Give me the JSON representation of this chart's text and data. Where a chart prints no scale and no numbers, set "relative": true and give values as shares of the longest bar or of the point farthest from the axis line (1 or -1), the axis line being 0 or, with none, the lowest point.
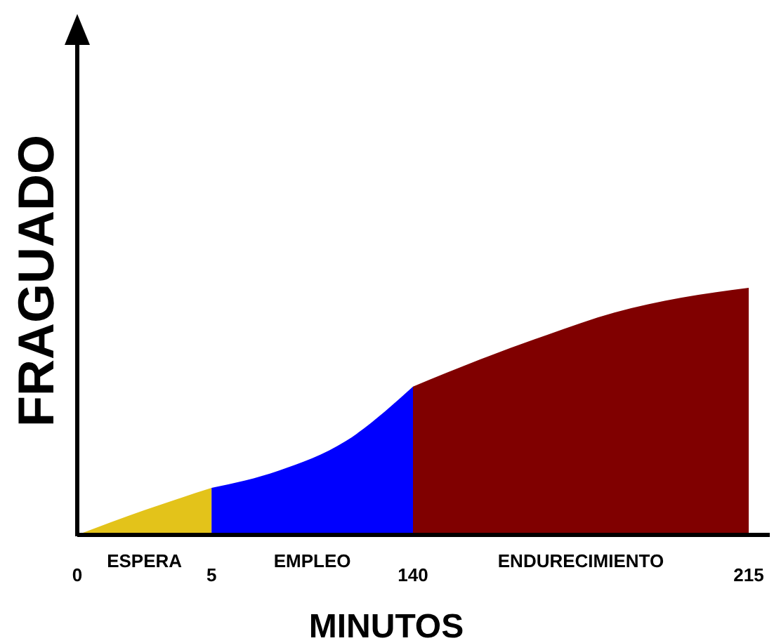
{
  "chart_data": {
    "type": "area",
    "relative": true,
    "xlabel": "MINUTOS",
    "ylabel": "FRAGUADO",
    "categories": [
      "0",
      null,
      "5",
      null,
      null,
      "140",
      null,
      null,
      null,
      null,
      "215"
    ],
    "series": [
      {
        "name": "ESPERA",
        "color": "#e3c31a",
        "values": [
          0,
          0.1,
          0.19,
          null,
          null,
          null,
          null,
          null,
          null,
          null,
          null
        ]
      },
      {
        "name": "EMPLEO",
        "color": "#0000ff",
        "values": [
          null,
          null,
          0.19,
          0.26,
          0.38,
          0.6,
          null,
          null,
          null,
          null,
          null
        ]
      },
      {
        "name": "ENDURECIMIENTO",
        "color": "#800000",
        "values": [
          null,
          null,
          null,
          null,
          null,
          0.6,
          0.71,
          0.81,
          0.9,
          0.96,
          1.0
        ]
      }
    ]
  }
}
